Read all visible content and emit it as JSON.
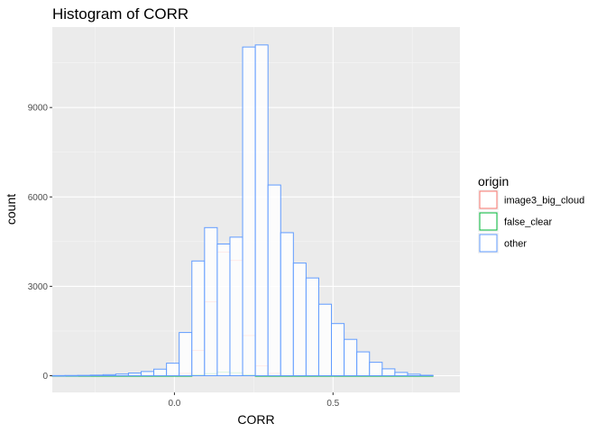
{
  "chart_data": {
    "type": "histogram",
    "title": "Histogram of CORR",
    "xlabel": "CORR",
    "ylabel": "count",
    "xlim": [
      -0.385,
      0.9
    ],
    "ylim": [
      -560,
      11700
    ],
    "x_ticks": [
      {
        "value": 0.0,
        "label": "0.0"
      },
      {
        "value": 0.5,
        "label": "0.5"
      }
    ],
    "y_ticks": [
      {
        "value": 0,
        "label": "0"
      },
      {
        "value": 3000,
        "label": "3000"
      },
      {
        "value": 6000,
        "label": "6000"
      },
      {
        "value": 9000,
        "label": "9000"
      }
    ],
    "bin_edges": [
      -0.385,
      -0.345,
      -0.305,
      -0.265,
      -0.225,
      -0.185,
      -0.145,
      -0.105,
      -0.065,
      -0.025,
      0.015,
      0.055,
      0.095,
      0.135,
      0.175,
      0.215,
      0.255,
      0.295,
      0.335,
      0.375,
      0.415,
      0.455,
      0.495,
      0.535,
      0.575,
      0.615,
      0.655,
      0.695,
      0.735,
      0.775,
      0.815
    ],
    "grid": true,
    "legend": {
      "title": "origin",
      "position": "right"
    },
    "series": [
      {
        "name": "image3_big_cloud",
        "color": "#F8766D",
        "values": [
          0,
          0,
          0,
          0,
          0,
          0,
          0,
          0,
          0,
          0,
          80,
          850,
          2480,
          4150,
          3870,
          1350,
          330,
          80,
          0,
          0,
          0,
          0,
          0,
          0,
          0,
          0,
          0,
          0,
          0,
          0
        ]
      },
      {
        "name": "false_clear",
        "color": "#00BA38",
        "values": [
          0,
          0,
          0,
          0,
          0,
          0,
          0,
          0,
          0,
          0,
          0,
          30,
          70,
          120,
          100,
          30,
          0,
          0,
          0,
          0,
          0,
          0,
          0,
          0,
          0,
          0,
          0,
          0,
          0,
          0
        ]
      },
      {
        "name": "other",
        "color": "#619CFF",
        "values": [
          5,
          8,
          12,
          20,
          35,
          55,
          90,
          140,
          220,
          420,
          1450,
          3850,
          4970,
          4420,
          4650,
          11030,
          11100,
          6400,
          4800,
          3780,
          3280,
          2400,
          1750,
          1220,
          800,
          450,
          230,
          110,
          50,
          15
        ]
      }
    ]
  }
}
